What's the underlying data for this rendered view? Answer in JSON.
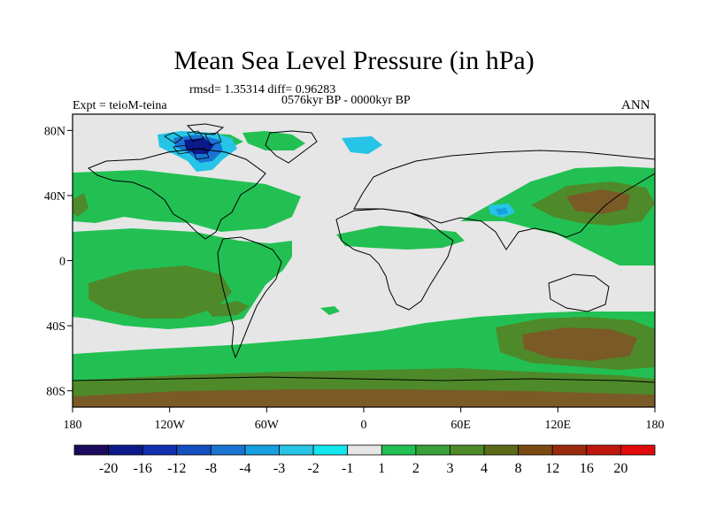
{
  "title": "Mean Sea Level Pressure (in hPa)",
  "stats_line": "rmsd= 1.35314 diff= 0.96283",
  "period_line": "0576kyr BP - 0000kyr BP",
  "experiment_line": "Expt = teioM-teina",
  "season_label": "ANN",
  "lat_ticks": [
    "80N",
    "40N",
    "0",
    "40S",
    "80S"
  ],
  "lon_ticks": [
    "180",
    "120W",
    "60W",
    "0",
    "60E",
    "120E",
    "180"
  ],
  "colorbar": {
    "labels": [
      "-20",
      "-16",
      "-12",
      "-8",
      "-4",
      "-3",
      "-2",
      "-1",
      "1",
      "2",
      "3",
      "4",
      "8",
      "12",
      "16",
      "20"
    ],
    "colors": [
      "#1c0a5c",
      "#0a1a8a",
      "#1030b0",
      "#1250c0",
      "#1a74d4",
      "#16a0e0",
      "#26c4e6",
      "#14e6ee",
      "#e6e6e6",
      "#22c053",
      "#3aa03a",
      "#4e8a2a",
      "#5a6a18",
      "#7a4a10",
      "#9a2a0c",
      "#c0160c",
      "#e00a0a"
    ]
  },
  "map_colors": {
    "ocean_bg": "#e6e6e6",
    "green": "#22c053",
    "olive": "#4e8a2a",
    "brown": "#7a5a26",
    "cyan": "#26c4e6",
    "blue": "#1250c0",
    "coast": "#000000"
  }
}
